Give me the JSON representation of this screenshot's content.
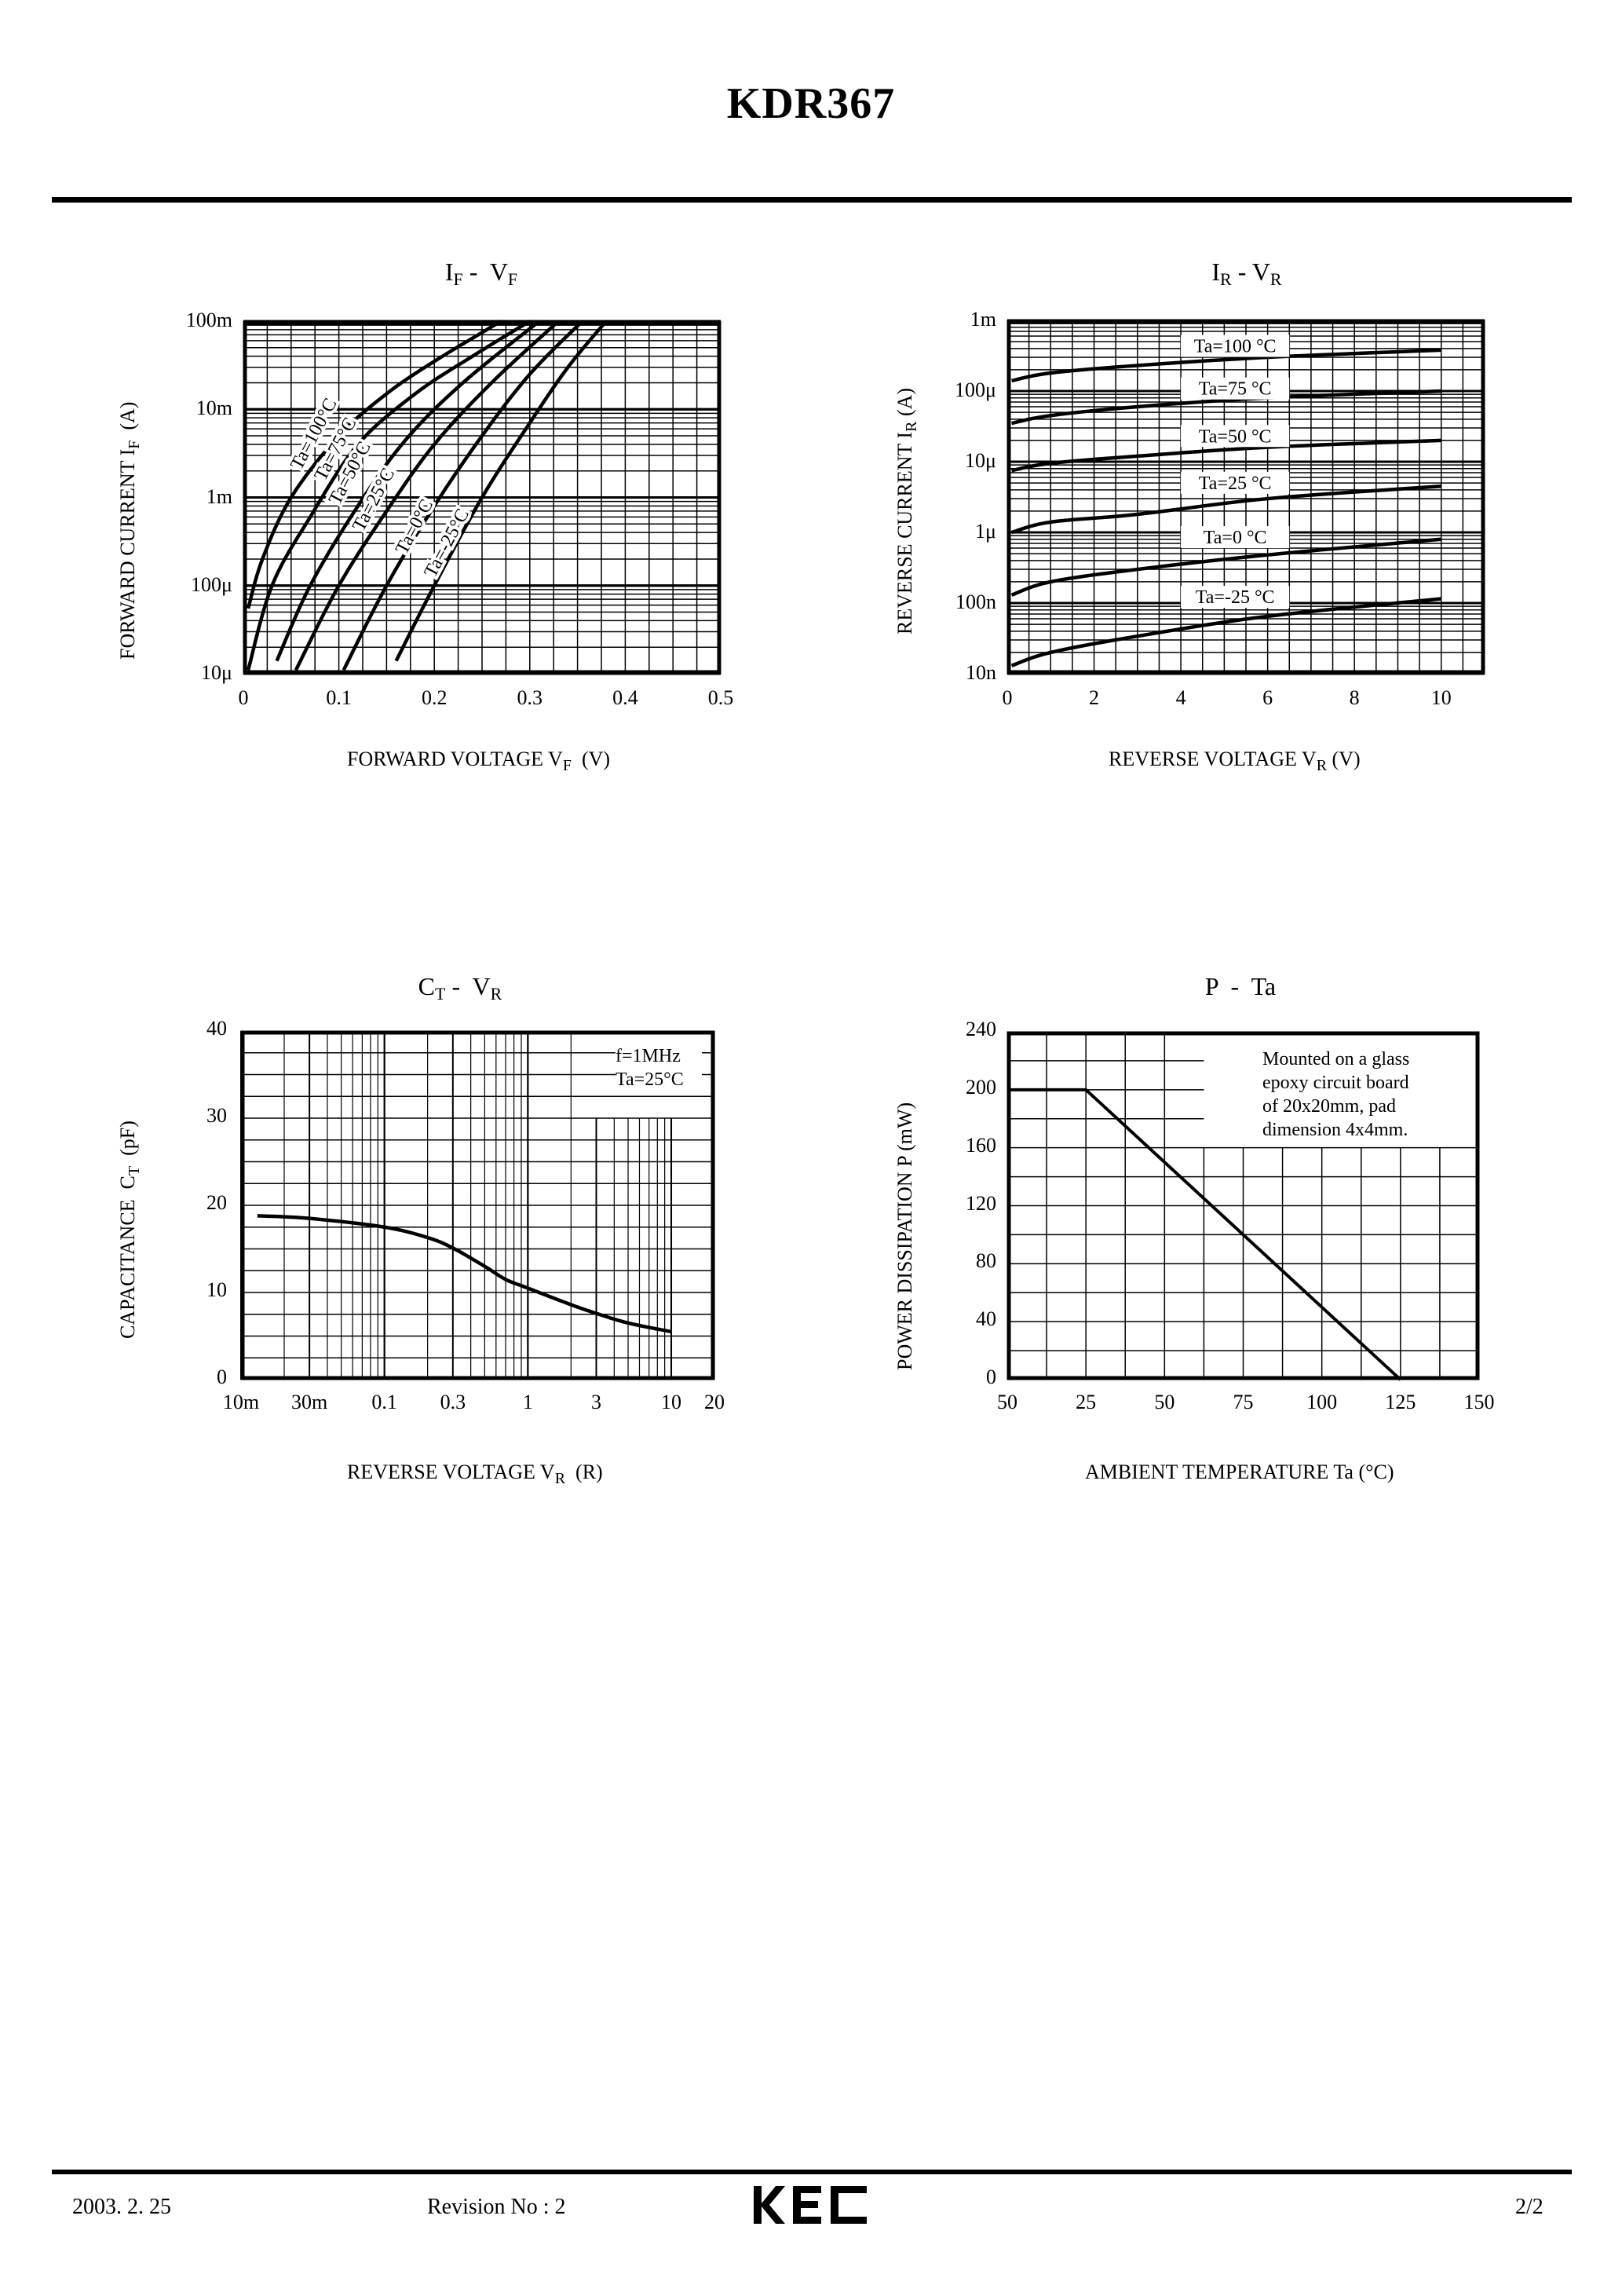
{
  "header": {
    "title": "KDR367"
  },
  "footer": {
    "date": "2003. 2. 25",
    "revision": "Revision No : 2",
    "logo": "KEC",
    "page": "2/2"
  },
  "chart_data": [
    {
      "id": "if_vf",
      "type": "line",
      "title": "IF - VF",
      "title_main": "I",
      "title_sub1": "F",
      "title_mid": " -  V",
      "title_sub2": "F",
      "xlabel": "FORWARD VOLTAGE VF  (V)",
      "xlabel_main": "FORWARD VOLTAGE V",
      "xlabel_sub": "F",
      "xlabel_unit": "  (V)",
      "ylabel": "FORWARD CURRENT IF  (A)",
      "ylabel_main": "FORWARD CURRENT I",
      "ylabel_sub": "F",
      "ylabel_unit": "  (A)",
      "x_ticks": [
        "0",
        "0.1",
        "0.2",
        "0.3",
        "0.4",
        "0.5"
      ],
      "y_ticks": [
        "100m",
        "10m",
        "1m",
        "100μ",
        "10μ"
      ],
      "xlim": [
        0,
        0.5
      ],
      "ylim": [
        1e-05,
        0.1
      ],
      "yscale": "log",
      "grid": true,
      "series": [
        {
          "name": "Ta=100°C",
          "points": [
            [
              0.005,
              5.5e-05
            ],
            [
              0.02,
              0.0002
            ],
            [
              0.05,
              0.001
            ],
            [
              0.1,
              0.005
            ],
            [
              0.15,
              0.015
            ],
            [
              0.2,
              0.035
            ],
            [
              0.27,
              0.1
            ]
          ]
        },
        {
          "name": "Ta=75°C",
          "points": [
            [
              0.005,
              1.1e-05
            ],
            [
              0.03,
              0.0001
            ],
            [
              0.07,
              0.0006
            ],
            [
              0.12,
              0.004
            ],
            [
              0.18,
              0.015
            ],
            [
              0.24,
              0.04
            ],
            [
              0.3,
              0.1
            ]
          ]
        },
        {
          "name": "Ta=50°C",
          "points": [
            [
              0.035,
              1.4e-05
            ],
            [
              0.07,
              0.0001
            ],
            [
              0.12,
              0.0008
            ],
            [
              0.17,
              0.0045
            ],
            [
              0.23,
              0.02
            ],
            [
              0.31,
              0.1
            ]
          ]
        },
        {
          "name": "Ta=25°C",
          "points": [
            [
              0.055,
              1.1e-05
            ],
            [
              0.1,
              0.0001
            ],
            [
              0.15,
              0.0007
            ],
            [
              0.2,
              0.004
            ],
            [
              0.26,
              0.02
            ],
            [
              0.33,
              0.1
            ]
          ]
        },
        {
          "name": "Ta=0°C",
          "points": [
            [
              0.105,
              1.1e-05
            ],
            [
              0.15,
              0.0001
            ],
            [
              0.2,
              0.0008
            ],
            [
              0.25,
              0.005
            ],
            [
              0.3,
              0.025
            ],
            [
              0.355,
              0.1
            ]
          ]
        },
        {
          "name": "Ta=-25°C",
          "points": [
            [
              0.16,
              1.4e-05
            ],
            [
              0.2,
              0.0001
            ],
            [
              0.25,
              0.001
            ],
            [
              0.3,
              0.007
            ],
            [
              0.34,
              0.03
            ],
            [
              0.38,
              0.1
            ]
          ]
        }
      ]
    },
    {
      "id": "ir_vr",
      "type": "line",
      "title": "IR - VR",
      "title_main": "I",
      "title_sub1": "R",
      "title_mid": " - V",
      "title_sub2": "R",
      "xlabel": "REVERSE VOLTAGE VR (V)",
      "xlabel_main": "REVERSE VOLTAGE V",
      "xlabel_sub": "R",
      "xlabel_unit": " (V)",
      "ylabel": "REVERSE CURRENT IR (A)",
      "ylabel_main": "REVERSE CURRENT I",
      "ylabel_sub": "R",
      "ylabel_unit": " (A)",
      "x_ticks": [
        "0",
        "2",
        "4",
        "6",
        "8",
        "10"
      ],
      "y_ticks": [
        "1m",
        "100μ",
        "10μ",
        "1μ",
        "100n",
        "10n"
      ],
      "xlim": [
        0,
        11
      ],
      "ylim": [
        1e-08,
        0.001
      ],
      "yscale": "log",
      "grid": true,
      "series": [
        {
          "name": "Ta=100 °C",
          "points": [
            [
              0.1,
              0.00014
            ],
            [
              1,
              0.00018
            ],
            [
              3,
              0.00023
            ],
            [
              6,
              0.0003
            ],
            [
              10,
              0.00038
            ]
          ]
        },
        {
          "name": "Ta=75 °C",
          "points": [
            [
              0.1,
              3.5e-05
            ],
            [
              1,
              4.5e-05
            ],
            [
              3,
              6e-05
            ],
            [
              6,
              8e-05
            ],
            [
              10,
              0.0001
            ]
          ]
        },
        {
          "name": "Ta=50 °C",
          "points": [
            [
              0.1,
              7.5e-06
            ],
            [
              1,
              9.5e-06
            ],
            [
              3,
              1.2e-05
            ],
            [
              6,
              1.6e-05
            ],
            [
              10,
              2e-05
            ]
          ]
        },
        {
          "name": "Ta=25 °C",
          "points": [
            [
              0.1,
              1e-06
            ],
            [
              1,
              1.4e-06
            ],
            [
              3,
              1.8e-06
            ],
            [
              6,
              3e-06
            ],
            [
              10,
              4.5e-06
            ]
          ]
        },
        {
          "name": "Ta=0 °C",
          "points": [
            [
              0.1,
              1.3e-07
            ],
            [
              1,
              2e-07
            ],
            [
              3,
              3e-07
            ],
            [
              6,
              4.8e-07
            ],
            [
              10,
              8e-07
            ]
          ]
        },
        {
          "name": "Ta=-25 °C",
          "points": [
            [
              0.1,
              1.3e-08
            ],
            [
              1,
              2e-08
            ],
            [
              3,
              3.4e-08
            ],
            [
              6,
              6.5e-08
            ],
            [
              10,
              1.15e-07
            ]
          ]
        }
      ]
    },
    {
      "id": "ct_vr",
      "type": "line",
      "title": "CT - VR",
      "title_main": "C",
      "title_sub1": "T",
      "title_mid": " -  V",
      "title_sub2": "R",
      "xlabel": "REVERSE VOLTAGE VR  (R)",
      "xlabel_main": "REVERSE VOLTAGE V",
      "xlabel_sub": "R",
      "xlabel_unit": "  (R)",
      "ylabel": "CAPACITANCE  CT  (pF)",
      "ylabel_main": "CAPACITANCE  C",
      "ylabel_sub": "T",
      "ylabel_unit": "  (pF)",
      "x_ticks": [
        "10m",
        "30m",
        "0.1",
        "0.3",
        "1",
        "3",
        "10",
        "20"
      ],
      "x_tick_values": [
        0.01,
        0.03,
        0.1,
        0.3,
        1,
        3,
        10,
        20
      ],
      "y_ticks": [
        "40",
        "30",
        "20",
        "10",
        "0"
      ],
      "xlim": [
        0.01,
        20
      ],
      "xscale": "log",
      "ylim": [
        0,
        40
      ],
      "grid": true,
      "annotation": [
        "f=1MHz",
        "Ta=25°C"
      ],
      "series": [
        {
          "name": "CT",
          "points": [
            [
              0.013,
              18.8
            ],
            [
              0.03,
              18.5
            ],
            [
              0.1,
              17.5
            ],
            [
              0.2,
              16.3
            ],
            [
              0.3,
              15.1
            ],
            [
              0.5,
              13.0
            ],
            [
              0.7,
              11.5
            ],
            [
              1,
              10.5
            ],
            [
              2,
              8.6
            ],
            [
              3,
              7.6
            ],
            [
              5,
              6.5
            ],
            [
              10,
              5.5
            ]
          ]
        }
      ]
    },
    {
      "id": "p_ta",
      "type": "line",
      "title": "P - Ta",
      "title_main": "P  -  Ta",
      "xlabel": "AMBIENT TEMPERATURE Ta (°C)",
      "ylabel": "POWER DISSIPATION P (mW)",
      "x_ticks": [
        "50",
        "25",
        "50",
        "75",
        "100",
        "125",
        "150"
      ],
      "y_ticks": [
        "240",
        "200",
        "160",
        "120",
        "80",
        "40",
        "0"
      ],
      "xlim": [
        -50,
        150
      ],
      "ylim": [
        0,
        240
      ],
      "grid": true,
      "annotation": [
        "Mounted on a glass",
        "epoxy circuit board",
        "of 20x20mm, pad",
        "dimension 4x4mm."
      ],
      "series": [
        {
          "name": "P",
          "points": [
            [
              -50,
              200
            ],
            [
              25,
              200
            ],
            [
              125,
              0
            ]
          ]
        }
      ]
    }
  ]
}
